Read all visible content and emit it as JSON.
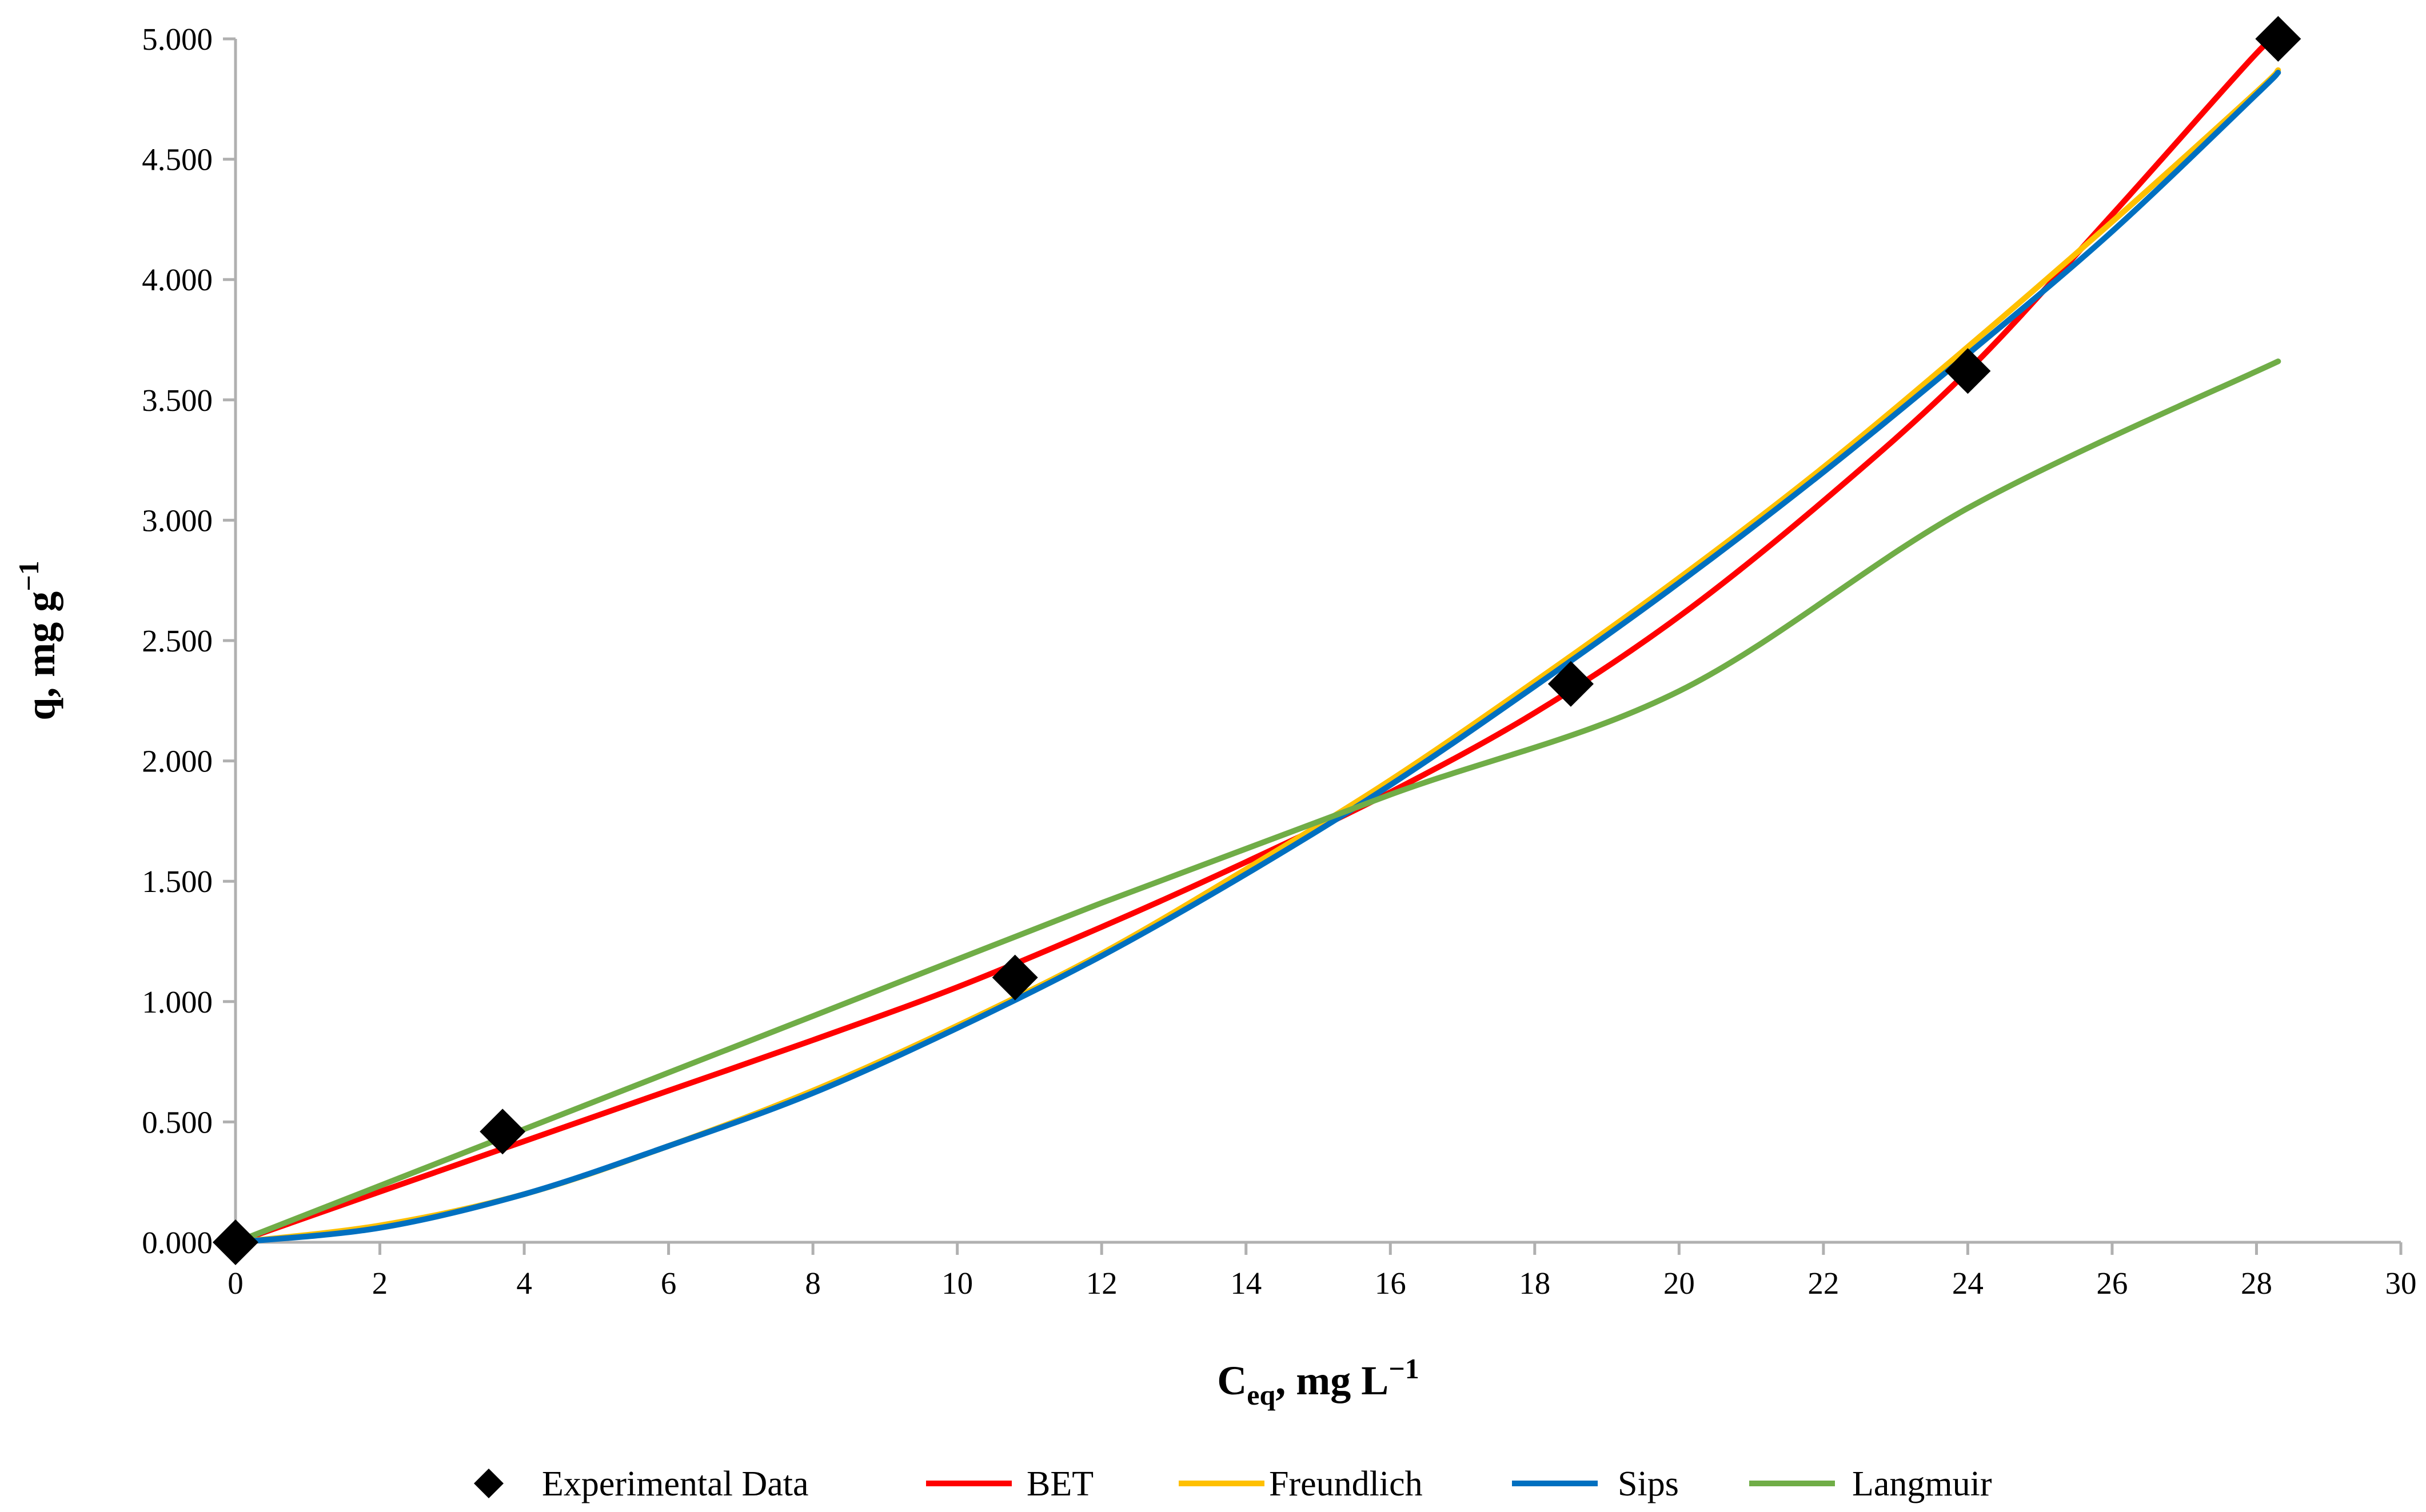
{
  "chart_data": {
    "type": "scatter",
    "title": "",
    "xlabel": {
      "main": "C",
      "sub": "eq",
      "rest": ", mg L",
      "sup": "−1"
    },
    "ylabel": {
      "main": "q, mg g",
      "sup": "−1"
    },
    "xlim": [
      0,
      30
    ],
    "ylim": [
      0,
      5
    ],
    "x_ticks": [
      {
        "v": 0,
        "label": "0"
      },
      {
        "v": 2,
        "label": "2"
      },
      {
        "v": 4,
        "label": "4"
      },
      {
        "v": 6,
        "label": "6"
      },
      {
        "v": 8,
        "label": "8"
      },
      {
        "v": 10,
        "label": "10"
      },
      {
        "v": 12,
        "label": "12"
      },
      {
        "v": 14,
        "label": "14"
      },
      {
        "v": 16,
        "label": "16"
      },
      {
        "v": 18,
        "label": "18"
      },
      {
        "v": 20,
        "label": "20"
      },
      {
        "v": 22,
        "label": "22"
      },
      {
        "v": 24,
        "label": "24"
      },
      {
        "v": 26,
        "label": "26"
      },
      {
        "v": 28,
        "label": "28"
      },
      {
        "v": 30,
        "label": "30"
      }
    ],
    "y_ticks": [
      {
        "v": 0,
        "label": "0.000"
      },
      {
        "v": 0.5,
        "label": "0.500"
      },
      {
        "v": 1,
        "label": "1.000"
      },
      {
        "v": 1.5,
        "label": "1.500"
      },
      {
        "v": 2,
        "label": "2.000"
      },
      {
        "v": 2.5,
        "label": "2.500"
      },
      {
        "v": 3,
        "label": "3.000"
      },
      {
        "v": 3.5,
        "label": "3.500"
      },
      {
        "v": 4,
        "label": "4.000"
      },
      {
        "v": 4.5,
        "label": "4.500"
      },
      {
        "v": 5,
        "label": "5.000"
      }
    ],
    "grid": false,
    "legend_position": "bottom",
    "experimental": {
      "name": "Experimental Data",
      "color": "#000000",
      "points": [
        {
          "x": 0,
          "y": 0
        },
        {
          "x": 3.7,
          "y": 0.46
        },
        {
          "x": 10.8,
          "y": 1.1
        },
        {
          "x": 18.5,
          "y": 2.32
        },
        {
          "x": 24.0,
          "y": 3.62
        },
        {
          "x": 28.3,
          "y": 5.0
        }
      ]
    },
    "series": [
      {
        "name": "BET",
        "color": "#ff0000",
        "x": [
          0,
          2,
          4,
          6,
          8,
          10,
          12,
          14,
          16,
          18,
          20,
          22,
          24,
          26,
          28,
          28.3
        ],
        "y": [
          0,
          0.21,
          0.42,
          0.63,
          0.84,
          1.06,
          1.31,
          1.58,
          1.87,
          2.2,
          2.6,
          3.08,
          3.62,
          4.27,
          4.94,
          5.0
        ]
      },
      {
        "name": "Freundlich",
        "color": "#ffc000",
        "x": [
          0,
          2,
          4,
          6,
          8,
          10,
          12,
          14,
          16,
          18,
          20,
          22,
          24,
          26,
          28,
          28.3
        ],
        "y": [
          0,
          0.07,
          0.2,
          0.4,
          0.63,
          0.9,
          1.2,
          1.55,
          1.92,
          2.33,
          2.76,
          3.22,
          3.72,
          4.24,
          4.78,
          4.87
        ]
      },
      {
        "name": "Sips",
        "color": "#0070c0",
        "x": [
          0,
          2,
          4,
          6,
          8,
          10,
          12,
          14,
          16,
          18,
          20,
          22,
          24,
          26,
          28,
          28.3
        ],
        "y": [
          0,
          0.06,
          0.2,
          0.4,
          0.62,
          0.89,
          1.19,
          1.53,
          1.9,
          2.31,
          2.74,
          3.2,
          3.69,
          4.2,
          4.77,
          4.86
        ]
      },
      {
        "name": "Langmuir",
        "color": "#70ad47",
        "x": [
          0,
          4,
          8,
          12,
          16,
          20,
          24,
          28.3
        ],
        "y": [
          0,
          0.47,
          0.94,
          1.41,
          1.86,
          2.29,
          3.05,
          3.66
        ]
      }
    ]
  }
}
